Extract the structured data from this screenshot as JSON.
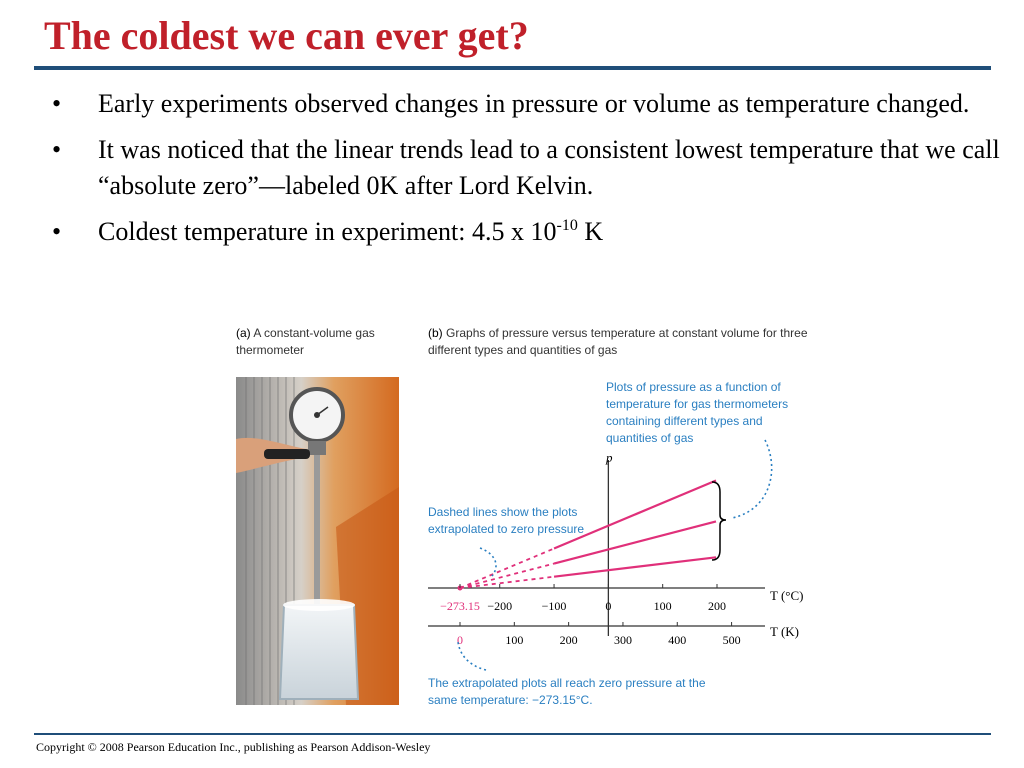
{
  "slide": {
    "title": "The coldest we can ever get?",
    "bullets": [
      {
        "text": "Early experiments observed changes in pressure or volume as temperature changed."
      },
      {
        "text": "It was noticed that the linear trends lead to a consistent lowest temperature that we call “absolute zero”—labeled 0K after Lord Kelvin."
      },
      {
        "text": "Coldest temperature in experiment: 4.5 x 10",
        "sup": "-10",
        "tail": " K"
      }
    ],
    "bullet_symbol": "•"
  },
  "figure": {
    "caption_a_label": "(a)",
    "caption_a_text": "A constant-volume gas thermometer",
    "caption_b_label": "(b)",
    "caption_b_text": "Graphs of pressure versus temperature at constant volume for three different types and quantities of gas",
    "annot_plots": "Plots of pressure as a function of temperature for gas thermometers containing different types and quantities of gas",
    "annot_dashed": "Dashed lines show the plots extrapolated to zero pressure",
    "annot_zero": "The extrapolated plots all reach zero pressure at the same temperature: −273.15°C."
  },
  "chart_data": {
    "type": "line",
    "ylabel": "p",
    "xlabel_celsius": "T (°C)",
    "xlabel_kelvin": "T (K)",
    "celsius_ticks": [
      "−273.15",
      "−200",
      "−100",
      "0",
      "100",
      "200"
    ],
    "celsius_tick_values": [
      -273.15,
      -200,
      -100,
      0,
      100,
      200
    ],
    "kelvin_ticks": [
      "0",
      "100",
      "200",
      "300",
      "400",
      "500"
    ],
    "kelvin_tick_values": [
      0,
      100,
      200,
      300,
      400,
      500
    ],
    "xlim_celsius": [
      -273.15,
      200
    ],
    "zero_point_celsius": -273.15,
    "series": [
      {
        "slope": 0.42
      },
      {
        "slope": 0.26
      },
      {
        "slope": 0.12
      }
    ],
    "measured_from_celsius": -100,
    "colors": {
      "solid": "#e0307a",
      "dashed": "#e0307a",
      "axis": "#333333",
      "annotation": "#2a7fc1",
      "highlight": "#e0307a"
    }
  },
  "footer": {
    "copyright": "Copyright © 2008 Pearson Education Inc., publishing as Pearson Addison-Wesley"
  }
}
